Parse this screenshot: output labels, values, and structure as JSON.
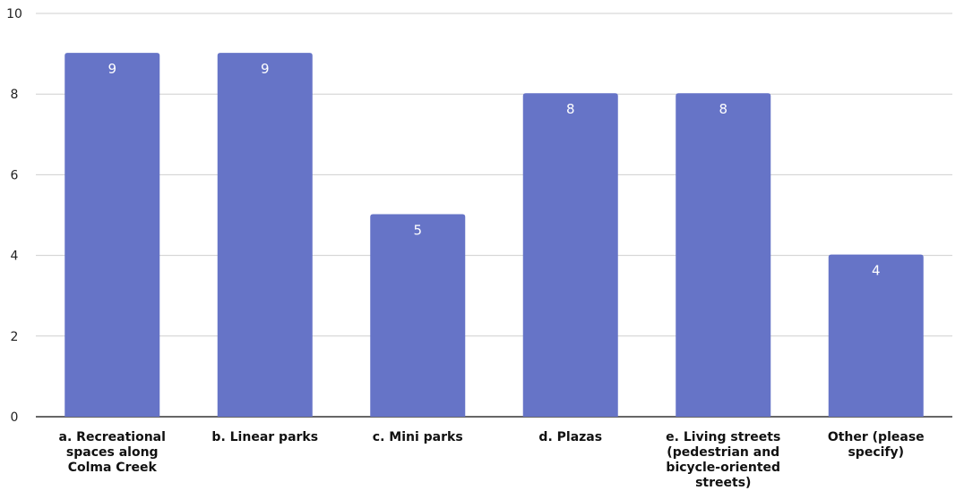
{
  "chart_data": {
    "type": "bar",
    "categories": [
      "a. Recreational spaces along Colma Creek",
      "b. Linear parks",
      "c. Mini parks",
      "d. Plazas",
      "e. Living streets (pedestrian and bicycle-oriented streets)",
      "Other (please specify)"
    ],
    "category_lines": [
      [
        "a. Recreational",
        "spaces along",
        "Colma Creek"
      ],
      [
        "b. Linear parks"
      ],
      [
        "c. Mini parks"
      ],
      [
        "d. Plazas"
      ],
      [
        "e. Living streets",
        "(pedestrian and",
        "bicycle-oriented",
        "streets)"
      ],
      [
        "Other (please",
        "specify)"
      ]
    ],
    "values": [
      9,
      9,
      5,
      8,
      8,
      4
    ],
    "data_labels": [
      "9",
      "9",
      "5",
      "8",
      "8",
      "4"
    ],
    "title": "",
    "xlabel": "",
    "ylabel": "",
    "ylim": [
      0,
      10
    ],
    "y_ticks": [
      0,
      2,
      4,
      6,
      8,
      10
    ],
    "grid": true,
    "legend": "none",
    "colors": {
      "bar": "#6674c7",
      "grid": "#cfcfcf",
      "axis": "#333333"
    }
  }
}
